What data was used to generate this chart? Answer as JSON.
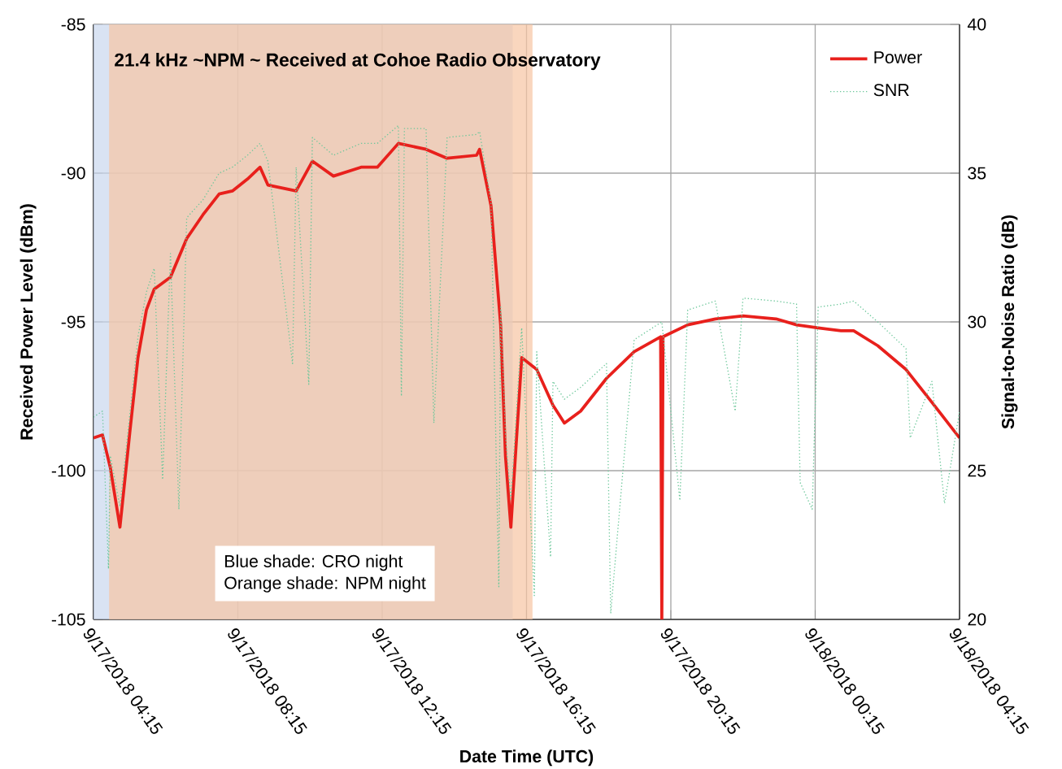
{
  "chart_data": {
    "type": "line",
    "title": "21.4 kHz ~NPM ~ Received at Cohoe Radio Observatory",
    "xlabel": "Date Time (UTC)",
    "ylabel": "Received Power Level (dBm)",
    "y2label": "Signal-to-Noise Ratio (dB)",
    "xlim": [
      "2018-09-17T04:15",
      "2018-09-18T04:15"
    ],
    "xticks": [
      {
        "value": "2018-09-17T04:15",
        "label": "9/17/2018 04:15"
      },
      {
        "value": "2018-09-17T08:15",
        "label": "9/17/2018 08:15"
      },
      {
        "value": "2018-09-17T12:15",
        "label": "9/17/2018 12:15"
      },
      {
        "value": "2018-09-17T16:15",
        "label": "9/17/2018 16:15"
      },
      {
        "value": "2018-09-17T20:15",
        "label": "9/17/2018 20:15"
      },
      {
        "value": "2018-09-18T00:15",
        "label": "9/18/2018 00:15"
      },
      {
        "value": "2018-09-18T04:15",
        "label": "9/18/2018 04:15"
      }
    ],
    "ylim": [
      -105,
      -85
    ],
    "yticks": [
      -105,
      -100,
      -95,
      -90,
      -85
    ],
    "y2lim": [
      20,
      40
    ],
    "y2ticks": [
      20,
      25,
      30,
      35,
      40
    ],
    "grid": true,
    "legend": "top right",
    "bands": [
      {
        "axis": "x",
        "from": "2018-09-17T04:15",
        "to": "2018-09-17T15:52",
        "color": "#c9d7ee"
      },
      {
        "axis": "x",
        "from": "2018-09-17T04:41",
        "to": "2018-09-17T16:25",
        "color": "#f6c4a2"
      }
    ],
    "annotations": [
      "Blue shade: CRO night",
      "Orange shade: NPM night"
    ],
    "series": [
      {
        "name": "Power",
        "color": "#e8201c",
        "line_style": "solid",
        "axis": "y",
        "x": [
          "2018-09-17T04:15",
          "2018-09-17T04:30",
          "2018-09-17T04:43",
          "2018-09-17T04:59",
          "2018-09-17T05:16",
          "2018-09-17T05:29",
          "2018-09-17T05:43",
          "2018-09-17T05:56",
          "2018-09-17T06:23",
          "2018-09-17T06:50",
          "2018-09-17T07:17",
          "2018-09-17T07:44",
          "2018-09-17T08:06",
          "2018-09-17T08:31",
          "2018-09-17T08:52",
          "2018-09-17T09:05",
          "2018-09-17T09:52",
          "2018-09-17T10:19",
          "2018-09-17T10:54",
          "2018-09-17T11:40",
          "2018-09-17T12:07",
          "2018-09-17T12:42",
          "2018-09-17T13:28",
          "2018-09-17T14:03",
          "2018-09-17T14:52",
          "2018-09-17T14:57",
          "2018-09-17T15:16",
          "2018-09-17T15:32",
          "2018-09-17T15:40",
          "2018-09-17T15:49",
          "2018-09-17T16:07",
          "2018-09-17T16:32",
          "2018-09-17T16:59",
          "2018-09-17T17:18",
          "2018-09-17T17:45",
          "2018-09-17T18:28",
          "2018-09-17T19:14",
          "2018-09-17T19:58",
          "2018-09-17T20:00",
          "2018-09-17T20:02",
          "2018-09-17T20:43",
          "2018-09-17T21:29",
          "2018-09-17T22:15",
          "2018-09-17T23:10",
          "2018-09-17T23:44",
          "2018-09-18T00:20",
          "2018-09-18T00:58",
          "2018-09-18T01:19",
          "2018-09-18T01:59",
          "2018-09-18T02:46",
          "2018-09-18T03:29",
          "2018-09-18T04:15"
        ],
        "values": [
          -98.9,
          -98.8,
          -99.9,
          -101.9,
          -98.6,
          -96.2,
          -94.6,
          -93.9,
          -93.5,
          -92.2,
          -91.4,
          -90.7,
          -90.6,
          -90.2,
          -89.8,
          -90.4,
          -90.6,
          -89.6,
          -90.1,
          -89.8,
          -89.8,
          -89.0,
          -89.2,
          -89.5,
          -89.4,
          -89.2,
          -91.1,
          -95.1,
          -99.5,
          -101.9,
          -96.2,
          -96.6,
          -97.8,
          -98.4,
          -98.0,
          -96.9,
          -96.0,
          -95.5,
          -105,
          -95.5,
          -95.1,
          -94.9,
          -94.8,
          -94.9,
          -95.1,
          -95.2,
          -95.3,
          -95.3,
          -95.8,
          -96.6,
          -97.7,
          -98.9
        ]
      },
      {
        "name": "SNR",
        "color": "#6cc79a",
        "line_style": "dotted",
        "axis": "y2",
        "x": [
          "2018-09-17T04:15",
          "2018-09-17T04:30",
          "2018-09-17T04:40",
          "2018-09-17T04:43",
          "2018-09-17T04:59",
          "2018-09-17T05:16",
          "2018-09-17T05:29",
          "2018-09-17T05:43",
          "2018-09-17T05:56",
          "2018-09-17T06:10",
          "2018-09-17T06:23",
          "2018-09-17T06:37",
          "2018-09-17T06:50",
          "2018-09-17T07:17",
          "2018-09-17T07:44",
          "2018-09-17T08:06",
          "2018-09-17T08:31",
          "2018-09-17T08:52",
          "2018-09-17T09:05",
          "2018-09-17T09:46",
          "2018-09-17T09:52",
          "2018-09-17T10:13",
          "2018-09-17T10:19",
          "2018-09-17T10:54",
          "2018-09-17T11:40",
          "2018-09-17T12:07",
          "2018-09-17T12:42",
          "2018-09-17T12:47",
          "2018-09-17T12:52",
          "2018-09-17T13:28",
          "2018-09-17T13:41",
          "2018-09-17T14:03",
          "2018-09-17T14:52",
          "2018-09-17T14:57",
          "2018-09-17T15:16",
          "2018-09-17T15:29",
          "2018-09-17T15:32",
          "2018-09-17T15:40",
          "2018-09-17T15:49",
          "2018-09-17T16:07",
          "2018-09-17T16:28",
          "2018-09-17T16:32",
          "2018-09-17T16:55",
          "2018-09-17T16:59",
          "2018-09-17T17:18",
          "2018-09-17T17:45",
          "2018-09-17T18:28",
          "2018-09-17T18:35",
          "2018-09-17T19:14",
          "2018-09-17T20:00",
          "2018-09-17T20:30",
          "2018-09-17T20:43",
          "2018-09-17T21:29",
          "2018-09-17T22:02",
          "2018-09-17T22:15",
          "2018-09-17T23:10",
          "2018-09-17T23:44",
          "2018-09-17T23:50",
          "2018-09-18T00:10",
          "2018-09-18T00:20",
          "2018-09-18T00:58",
          "2018-09-18T01:19",
          "2018-09-18T01:59",
          "2018-09-18T02:46",
          "2018-09-18T02:53",
          "2018-09-18T03:29",
          "2018-09-18T03:50",
          "2018-09-18T04:15"
        ],
        "values": [
          26.8,
          27.0,
          21.7,
          25.5,
          23.8,
          27.0,
          29.5,
          31.0,
          31.8,
          24.7,
          32.3,
          23.7,
          33.5,
          34.1,
          35.0,
          35.2,
          35.6,
          36.0,
          35.4,
          28.6,
          35.2,
          27.9,
          36.2,
          35.6,
          36.0,
          36.0,
          36.6,
          27.5,
          36.5,
          36.5,
          26.6,
          36.2,
          36.3,
          36.4,
          34.0,
          21.1,
          30.5,
          26.2,
          24.0,
          29.8,
          20.8,
          29.0,
          22.1,
          28.0,
          27.4,
          27.8,
          28.6,
          20.2,
          29.4,
          30.0,
          24.0,
          30.4,
          30.7,
          27.0,
          30.8,
          30.7,
          30.6,
          24.6,
          23.7,
          30.5,
          30.6,
          30.7,
          30.0,
          29.1,
          26.1,
          28.0,
          23.9,
          27.0
        ]
      }
    ]
  }
}
